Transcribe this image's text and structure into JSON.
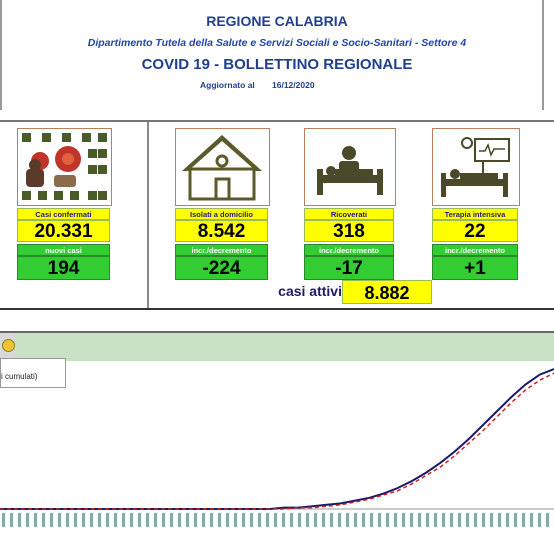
{
  "header": {
    "region": "REGIONE CALABRIA",
    "department": "Dipartimento Tutela della Salute e Servizi Sociali e Socio-Sanitari - Settore 4",
    "title": "COVID 19 - BOLLETTINO REGIONALE",
    "updated_label": "Aggiornato al",
    "updated_date": "16/12/2020"
  },
  "cards": [
    {
      "label": "Casi confermati",
      "value": "20.331",
      "delta_label": "nuovi casi",
      "delta": "194",
      "icon": "virus-people-icon"
    },
    {
      "label": "Isolati a domicilio",
      "value": "8.542",
      "delta_label": "incr./decremento",
      "delta": "-224",
      "icon": "house-icon"
    },
    {
      "label": "Ricoverati",
      "value": "318",
      "delta_label": "incr./decremento",
      "delta": "-17",
      "icon": "hospital-bed-icon"
    },
    {
      "label": "Terapia intensiva",
      "value": "22",
      "delta_label": "incr./decremento",
      "delta": "+1",
      "icon": "icu-bed-icon"
    }
  ],
  "active": {
    "label": "casi attivi",
    "value": "8.882"
  },
  "chart": {
    "legend_text": "i cumulati)",
    "colors": {
      "series_solid": "#1a1a6a",
      "series_dashed": "#cc2222",
      "band": "#c9e1c5"
    }
  },
  "chart_data": {
    "type": "line",
    "title": "",
    "xlabel": "",
    "ylabel": "",
    "series": [
      {
        "values": [
          0,
          0,
          0,
          0,
          0,
          0,
          0,
          0,
          0,
          0,
          0,
          0,
          0,
          0,
          0,
          0,
          0,
          0,
          0,
          0,
          1,
          1,
          2,
          3,
          4,
          6,
          8,
          11,
          15,
          20,
          26,
          33,
          41,
          50,
          60,
          70,
          80,
          89,
          96,
          100
        ]
      },
      {
        "values": [
          0,
          0,
          0,
          0,
          0,
          0,
          0,
          0,
          0,
          0,
          0,
          0,
          0,
          0,
          0,
          0,
          0,
          0,
          0,
          0,
          0,
          1,
          1,
          2,
          3,
          5,
          7,
          10,
          13,
          18,
          24,
          30,
          38,
          47,
          56,
          66,
          76,
          85,
          92,
          97
        ]
      }
    ]
  }
}
